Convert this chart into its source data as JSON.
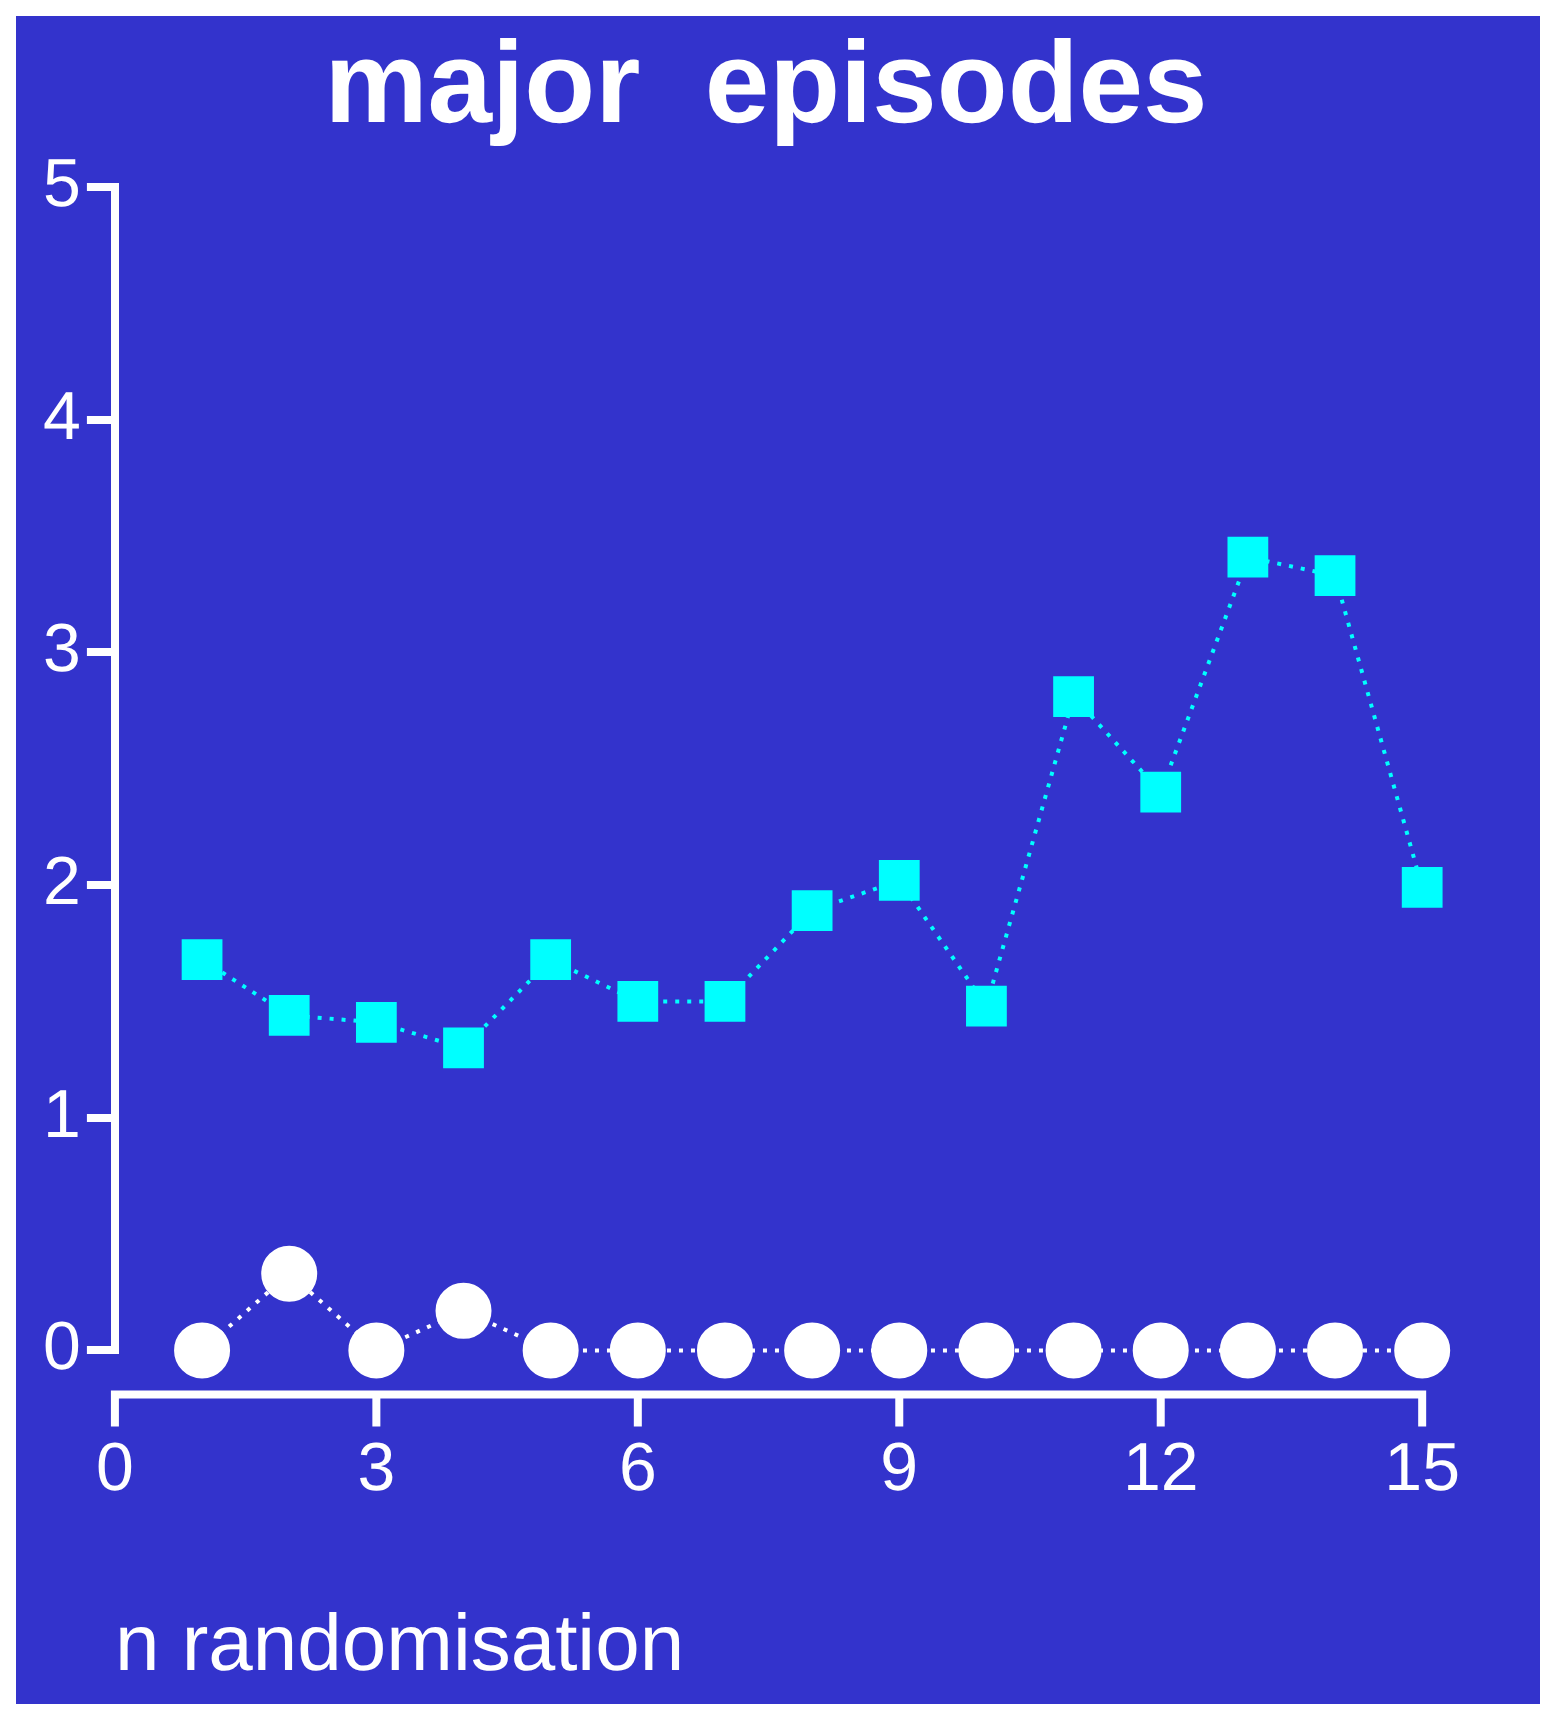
{
  "chart_data": {
    "type": "line",
    "title": "major  episodes",
    "xlabel": "n randomisation",
    "x": [
      1,
      2,
      3,
      4,
      5,
      6,
      7,
      8,
      9,
      10,
      11,
      12,
      13,
      14,
      15
    ],
    "series": [
      {
        "color": "#00ffff",
        "marker": "square",
        "line_style": "dotted",
        "values": [
          1.68,
          1.44,
          1.41,
          1.3,
          1.68,
          1.5,
          1.5,
          1.89,
          2.02,
          1.48,
          2.81,
          2.4,
          3.41,
          3.33,
          1.99
        ]
      },
      {
        "color": "#ffffff",
        "marker": "circle",
        "line_style": "dotted",
        "values": [
          0,
          0.33,
          0,
          0.17,
          0,
          0,
          0,
          0,
          0,
          0,
          0,
          0,
          0,
          0,
          0
        ]
      }
    ],
    "xlim": [
      0,
      15
    ],
    "xticks": [
      0,
      3,
      6,
      9,
      12,
      15
    ],
    "ylim": [
      0,
      5
    ],
    "yticks": [
      0,
      1,
      2,
      3,
      4,
      5
    ],
    "grid": false,
    "legend": false
  }
}
